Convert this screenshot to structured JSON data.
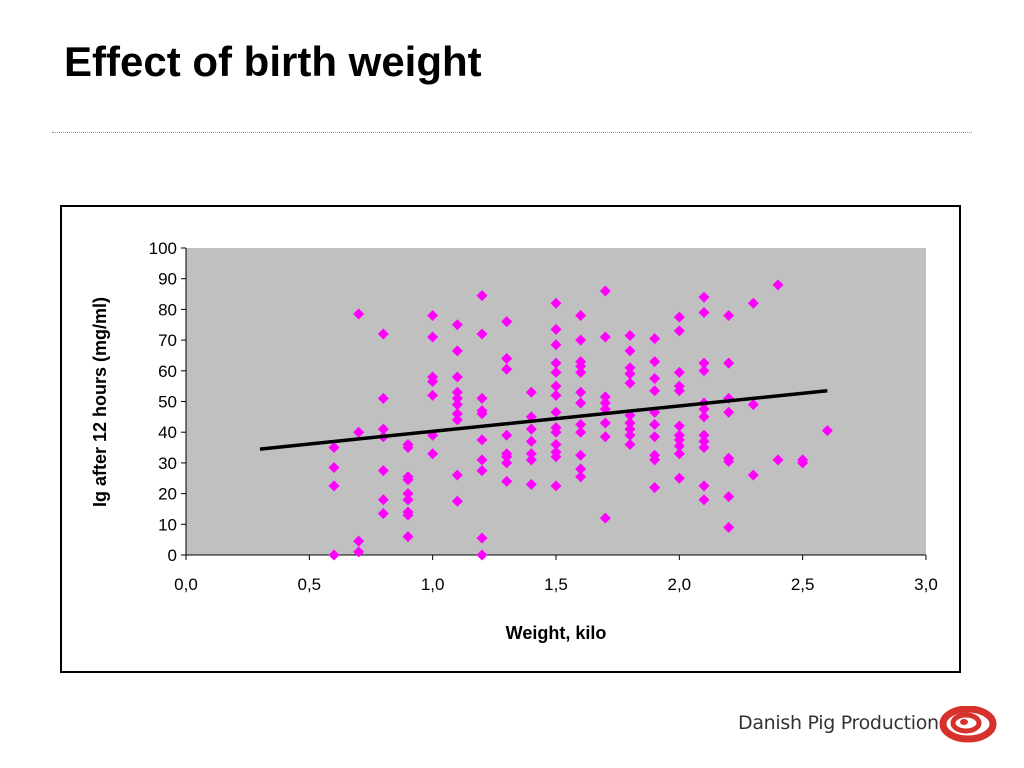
{
  "slide": {
    "title": "Effect of birth weight",
    "brand_name": "Danish Pig Production",
    "brand_color": "#d6312b"
  },
  "chart_data": {
    "type": "scatter",
    "title": "",
    "xlabel": "Weight, kilo",
    "ylabel": "Ig after 12 hours (mg/ml)",
    "xlim": [
      0,
      3
    ],
    "ylim": [
      0,
      100
    ],
    "x_ticks": [
      0.0,
      0.5,
      1.0,
      1.5,
      2.0,
      2.5,
      3.0
    ],
    "x_tick_labels": [
      "0,0",
      "0,5",
      "1,0",
      "1,5",
      "2,0",
      "2,5",
      "3,0"
    ],
    "y_ticks": [
      0,
      10,
      20,
      30,
      40,
      50,
      60,
      70,
      80,
      90,
      100
    ],
    "y_tick_labels": [
      "0",
      "10",
      "20",
      "30",
      "40",
      "50",
      "60",
      "70",
      "80",
      "90",
      "100"
    ],
    "grid": false,
    "legend": "none",
    "plot_background": "#c0c0c0",
    "marker_color": "#ff00ff",
    "marker": "diamond",
    "series": [
      {
        "points": [
          [
            0.6,
            0
          ],
          [
            0.6,
            22.5
          ],
          [
            0.6,
            28.5
          ],
          [
            0.6,
            35
          ],
          [
            0.7,
            1
          ],
          [
            0.7,
            4.5
          ],
          [
            0.7,
            40
          ],
          [
            0.7,
            78.5
          ],
          [
            0.8,
            13.5
          ],
          [
            0.8,
            18
          ],
          [
            0.8,
            27.5
          ],
          [
            0.8,
            38.5
          ],
          [
            0.8,
            41
          ],
          [
            0.8,
            51
          ],
          [
            0.8,
            72
          ],
          [
            0.9,
            6
          ],
          [
            0.9,
            13
          ],
          [
            0.9,
            14
          ],
          [
            0.9,
            18
          ],
          [
            0.9,
            20
          ],
          [
            0.9,
            24.5
          ],
          [
            0.9,
            25.5
          ],
          [
            0.9,
            35
          ],
          [
            0.9,
            36
          ],
          [
            1.0,
            33
          ],
          [
            1.0,
            39
          ],
          [
            1.0,
            52
          ],
          [
            1.0,
            56.5
          ],
          [
            1.0,
            58
          ],
          [
            1.0,
            71
          ],
          [
            1.0,
            78
          ],
          [
            1.1,
            17.5
          ],
          [
            1.1,
            26
          ],
          [
            1.1,
            44
          ],
          [
            1.1,
            46
          ],
          [
            1.1,
            49
          ],
          [
            1.1,
            51
          ],
          [
            1.1,
            53
          ],
          [
            1.1,
            58
          ],
          [
            1.1,
            66.5
          ],
          [
            1.1,
            75
          ],
          [
            1.2,
            0
          ],
          [
            1.2,
            5.5
          ],
          [
            1.2,
            27.5
          ],
          [
            1.2,
            31
          ],
          [
            1.2,
            37.5
          ],
          [
            1.2,
            46
          ],
          [
            1.2,
            47
          ],
          [
            1.2,
            51
          ],
          [
            1.2,
            72
          ],
          [
            1.2,
            84.5
          ],
          [
            1.3,
            24
          ],
          [
            1.3,
            30
          ],
          [
            1.3,
            32
          ],
          [
            1.3,
            33
          ],
          [
            1.3,
            39
          ],
          [
            1.3,
            60.5
          ],
          [
            1.3,
            64
          ],
          [
            1.3,
            76
          ],
          [
            1.4,
            23
          ],
          [
            1.4,
            31
          ],
          [
            1.4,
            33
          ],
          [
            1.4,
            37
          ],
          [
            1.4,
            41
          ],
          [
            1.4,
            45
          ],
          [
            1.4,
            53
          ],
          [
            1.5,
            22.5
          ],
          [
            1.5,
            32
          ],
          [
            1.5,
            33.5
          ],
          [
            1.5,
            36
          ],
          [
            1.5,
            40
          ],
          [
            1.5,
            41.5
          ],
          [
            1.5,
            46.5
          ],
          [
            1.5,
            52
          ],
          [
            1.5,
            55
          ],
          [
            1.5,
            59.5
          ],
          [
            1.5,
            62.5
          ],
          [
            1.5,
            68.5
          ],
          [
            1.5,
            73.5
          ],
          [
            1.5,
            82
          ],
          [
            1.6,
            25.5
          ],
          [
            1.6,
            28
          ],
          [
            1.6,
            32.5
          ],
          [
            1.6,
            40
          ],
          [
            1.6,
            42.5
          ],
          [
            1.6,
            49.5
          ],
          [
            1.6,
            53
          ],
          [
            1.6,
            59.5
          ],
          [
            1.6,
            61.5
          ],
          [
            1.6,
            63
          ],
          [
            1.6,
            70
          ],
          [
            1.6,
            78
          ],
          [
            1.7,
            12
          ],
          [
            1.7,
            38.5
          ],
          [
            1.7,
            43
          ],
          [
            1.7,
            47.5
          ],
          [
            1.7,
            49.5
          ],
          [
            1.7,
            51.5
          ],
          [
            1.7,
            71
          ],
          [
            1.7,
            86
          ],
          [
            1.8,
            36
          ],
          [
            1.8,
            39
          ],
          [
            1.8,
            41
          ],
          [
            1.8,
            43
          ],
          [
            1.8,
            45.5
          ],
          [
            1.8,
            56
          ],
          [
            1.8,
            59
          ],
          [
            1.8,
            61
          ],
          [
            1.8,
            66.5
          ],
          [
            1.8,
            71.5
          ],
          [
            1.9,
            22
          ],
          [
            1.9,
            31
          ],
          [
            1.9,
            32.5
          ],
          [
            1.9,
            38.5
          ],
          [
            1.9,
            42.5
          ],
          [
            1.9,
            46.5
          ],
          [
            1.9,
            53.5
          ],
          [
            1.9,
            57.5
          ],
          [
            1.9,
            63
          ],
          [
            1.9,
            70.5
          ],
          [
            2.0,
            25
          ],
          [
            2.0,
            33
          ],
          [
            2.0,
            35.5
          ],
          [
            2.0,
            37.5
          ],
          [
            2.0,
            39
          ],
          [
            2.0,
            42
          ],
          [
            2.0,
            53.5
          ],
          [
            2.0,
            55
          ],
          [
            2.0,
            59.5
          ],
          [
            2.0,
            73
          ],
          [
            2.0,
            77.5
          ],
          [
            2.1,
            18
          ],
          [
            2.1,
            22.5
          ],
          [
            2.1,
            35
          ],
          [
            2.1,
            37
          ],
          [
            2.1,
            39
          ],
          [
            2.1,
            45
          ],
          [
            2.1,
            47.5
          ],
          [
            2.1,
            49.5
          ],
          [
            2.1,
            60
          ],
          [
            2.1,
            62.5
          ],
          [
            2.1,
            79
          ],
          [
            2.1,
            84
          ],
          [
            2.2,
            9
          ],
          [
            2.2,
            19
          ],
          [
            2.2,
            30.5
          ],
          [
            2.2,
            31.5
          ],
          [
            2.2,
            46.5
          ],
          [
            2.2,
            51
          ],
          [
            2.2,
            62.5
          ],
          [
            2.2,
            78
          ],
          [
            2.3,
            26
          ],
          [
            2.3,
            49
          ],
          [
            2.3,
            82
          ],
          [
            2.4,
            31
          ],
          [
            2.4,
            88
          ],
          [
            2.5,
            30
          ],
          [
            2.5,
            31
          ],
          [
            2.6,
            40.5
          ]
        ]
      }
    ],
    "trendline": {
      "type": "linear",
      "x": [
        0.3,
        2.6
      ],
      "y": [
        34.5,
        53.5
      ],
      "color": "#000000"
    }
  }
}
